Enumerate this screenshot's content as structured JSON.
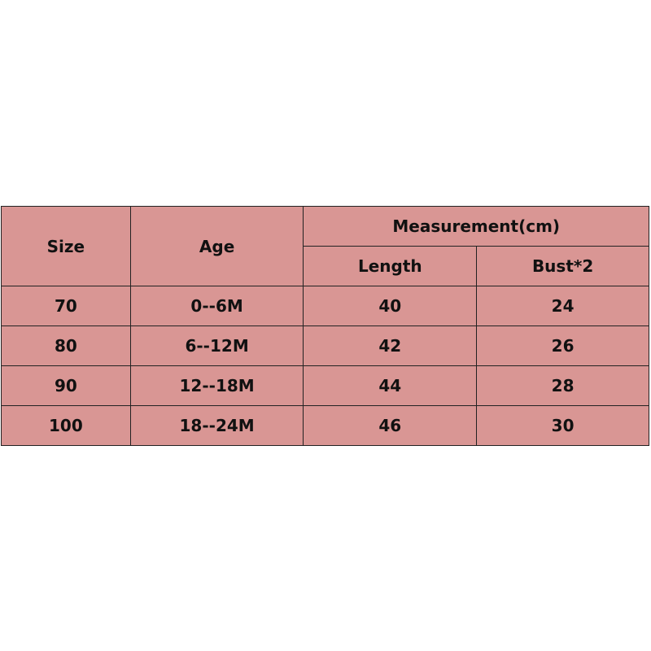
{
  "table": {
    "headers": {
      "size": "Size",
      "age": "Age",
      "measurement": "Measurement(cm)",
      "length": "Length",
      "bust": "Bust*2"
    },
    "rows": [
      {
        "size": "70",
        "age": "0--6M",
        "length": "40",
        "bust": "24"
      },
      {
        "size": "80",
        "age": "6--12M",
        "length": "42",
        "bust": "26"
      },
      {
        "size": "90",
        "age": "12--18M",
        "length": "44",
        "bust": "28"
      },
      {
        "size": "100",
        "age": "18--24M",
        "length": "46",
        "bust": "30"
      }
    ],
    "cell_color": "#d99694"
  }
}
